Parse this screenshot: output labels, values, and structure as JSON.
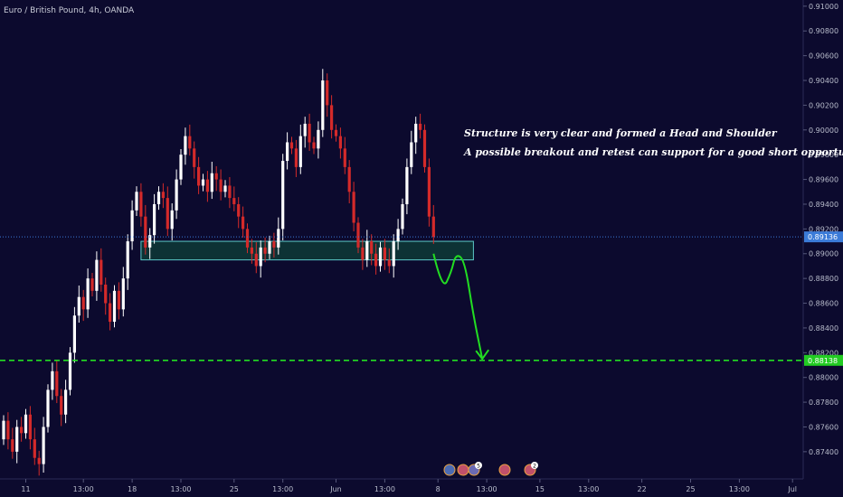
{
  "chart_title": "Euro / British Pound, 4h, OANDA",
  "annotations": [
    "Structure is very clear and formed a Head and Shoulder",
    "A possible breakout and retest can support for a good short opportunity"
  ],
  "colors": {
    "background": "#0c0a2e",
    "up_candle": "#ffffff",
    "down_candle": "#d42a2a",
    "price_line": "#3b7bd8",
    "target_line": "#22dd22",
    "zone_fill": "#0e3a36",
    "zone_border": "#5cc8c8",
    "projection": "#22dd22",
    "current_price_tag": "#3b7bd8",
    "target_price_tag": "#22cc22"
  },
  "event_icons": [
    {
      "label": ""
    },
    {
      "label": ""
    },
    {
      "label": "5"
    },
    {
      "label": ""
    },
    {
      "label": "2"
    }
  ],
  "chart_data": {
    "type": "candlestick",
    "title": "Euro / British Pound, 4h, OANDA",
    "y_ticks": [
      "0.91000",
      "0.90800",
      "0.90600",
      "0.90400",
      "0.90200",
      "0.90000",
      "0.89800",
      "0.89600",
      "0.89400",
      "0.89200",
      "0.89000",
      "0.88800",
      "0.88600",
      "0.88400",
      "0.88200",
      "0.88000",
      "0.87800",
      "0.87600",
      "0.87400"
    ],
    "ylim": [
      0.8718,
      0.9105
    ],
    "x_ticks": [
      {
        "label": "11",
        "i": 5
      },
      {
        "label": "13:00",
        "i": 18
      },
      {
        "label": "18",
        "i": 29
      },
      {
        "label": "13:00",
        "i": 40
      },
      {
        "label": "25",
        "i": 52
      },
      {
        "label": "13:00",
        "i": 63
      },
      {
        "label": "Jun",
        "i": 75
      },
      {
        "label": "13:00",
        "i": 86
      },
      {
        "label": "8",
        "i": 98
      },
      {
        "label": "13:00",
        "i": 109
      },
      {
        "label": "15",
        "i": 121
      },
      {
        "label": "13:00",
        "i": 132
      },
      {
        "label": "22",
        "i": 144
      },
      {
        "label": "25",
        "i": 155
      },
      {
        "label": "13:00",
        "i": 166
      },
      {
        "label": "Jul",
        "i": 178
      }
    ],
    "current_price": "0.89136",
    "target_price": "0.88138",
    "support_zone": {
      "from_i": 31,
      "to_i": 106,
      "top": 0.891,
      "bottom": 0.8895
    },
    "projection_path": [
      [
        97,
        0.89
      ],
      [
        99,
        0.887
      ],
      [
        101,
        0.8885
      ],
      [
        102,
        0.89
      ],
      [
        104,
        0.8895
      ],
      [
        106,
        0.885
      ],
      [
        108,
        0.8815
      ]
    ],
    "closes": [
      0.8765,
      0.875,
      0.874,
      0.876,
      0.8755,
      0.877,
      0.875,
      0.8735,
      0.873,
      0.876,
      0.879,
      0.8805,
      0.8785,
      0.877,
      0.879,
      0.882,
      0.885,
      0.8865,
      0.8855,
      0.888,
      0.887,
      0.8895,
      0.8875,
      0.886,
      0.8845,
      0.887,
      0.8855,
      0.888,
      0.891,
      0.8935,
      0.895,
      0.893,
      0.8905,
      0.8915,
      0.894,
      0.895,
      0.8945,
      0.892,
      0.8935,
      0.896,
      0.898,
      0.8995,
      0.8985,
      0.897,
      0.8955,
      0.896,
      0.895,
      0.8965,
      0.896,
      0.895,
      0.8955,
      0.8945,
      0.894,
      0.893,
      0.892,
      0.8905,
      0.89,
      0.889,
      0.8905,
      0.89,
      0.891,
      0.8905,
      0.892,
      0.8975,
      0.899,
      0.8985,
      0.897,
      0.8995,
      0.9005,
      0.899,
      0.8985,
      0.9,
      0.904,
      0.902,
      0.9,
      0.8995,
      0.8985,
      0.897,
      0.895,
      0.8925,
      0.8905,
      0.8895,
      0.891,
      0.89,
      0.889,
      0.8905,
      0.8895,
      0.889,
      0.891,
      0.892,
      0.894,
      0.897,
      0.899,
      0.9005,
      0.9,
      0.897,
      0.893,
      0.89136
    ],
    "opens": [
      0.875,
      0.8765,
      0.875,
      0.874,
      0.876,
      0.8755,
      0.877,
      0.875,
      0.8735,
      0.873,
      0.876,
      0.879,
      0.8805,
      0.8785,
      0.877,
      0.879,
      0.882,
      0.885,
      0.8865,
      0.8855,
      0.888,
      0.887,
      0.8895,
      0.8875,
      0.886,
      0.8845,
      0.887,
      0.8855,
      0.888,
      0.891,
      0.8935,
      0.895,
      0.893,
      0.8905,
      0.8915,
      0.894,
      0.895,
      0.8945,
      0.892,
      0.8935,
      0.896,
      0.898,
      0.8995,
      0.8985,
      0.897,
      0.8955,
      0.896,
      0.895,
      0.8965,
      0.896,
      0.895,
      0.8955,
      0.8945,
      0.894,
      0.893,
      0.892,
      0.8905,
      0.89,
      0.889,
      0.8905,
      0.89,
      0.891,
      0.8905,
      0.892,
      0.8975,
      0.899,
      0.8985,
      0.897,
      0.8995,
      0.9005,
      0.899,
      0.8985,
      0.9,
      0.904,
      0.902,
      0.9,
      0.8995,
      0.8985,
      0.897,
      0.895,
      0.8925,
      0.8905,
      0.8895,
      0.891,
      0.89,
      0.889,
      0.8905,
      0.8895,
      0.889,
      0.891,
      0.892,
      0.894,
      0.897,
      0.899,
      0.9005,
      0.9,
      0.897,
      0.893
    ]
  }
}
